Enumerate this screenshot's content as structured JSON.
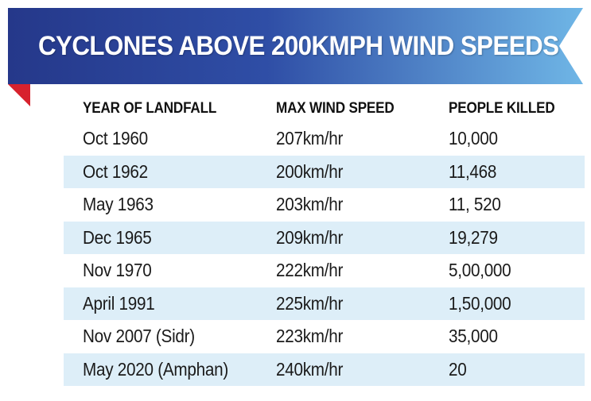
{
  "title": "CYCLONES ABOVE 200KMPH WIND SPEEDS",
  "colors": {
    "banner_dark": "#2b3f93",
    "banner_light": "#6fb6e6",
    "fold": "#d7222d",
    "row_shade": "#ddeef8"
  },
  "table": {
    "headers": [
      "YEAR OF LANDFALL",
      "MAX WIND SPEED",
      "PEOPLE KILLED"
    ],
    "rows": [
      [
        "Oct 1960",
        "207km/hr",
        "10,000"
      ],
      [
        "Oct 1962",
        "200km/hr",
        "11,468"
      ],
      [
        "May 1963",
        "203km/hr",
        "11, 520"
      ],
      [
        "Dec 1965",
        "209km/hr",
        "19,279"
      ],
      [
        "Nov 1970",
        "222km/hr",
        "5,00,000"
      ],
      [
        "April 1991",
        "225km/hr",
        "1,50,000"
      ],
      [
        "Nov 2007 (Sidr)",
        "223km/hr",
        "35,000"
      ],
      [
        "May 2020 (Amphan)",
        "240km/hr",
        "20"
      ]
    ]
  }
}
